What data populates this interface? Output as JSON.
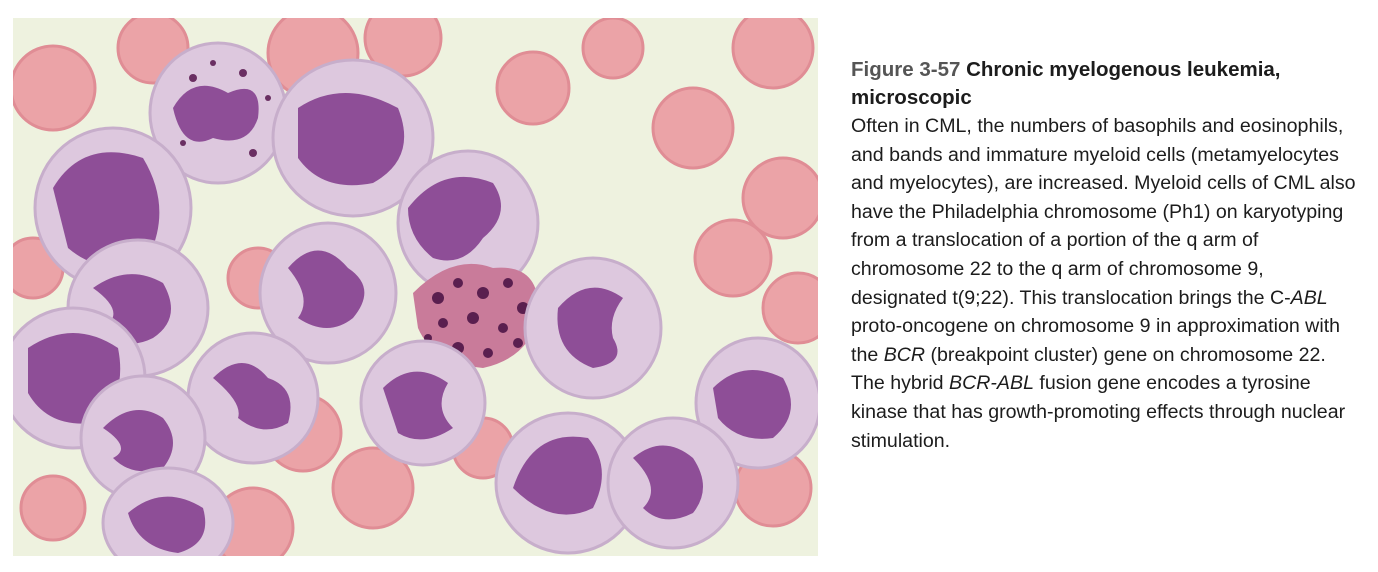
{
  "figure": {
    "label": "Figure 3-57",
    "title": "Chronic myelogenous leukemia, microscopic"
  },
  "caption": {
    "s1": "Often in CML, the numbers of basophils and eosinophils, and bands and immature myeloid cells (metamyelocytes and myelocytes), are increased. Myeloid cells of CML also have the Philadelphia chromosome (Ph1) on karyotyping from a translocation of a portion of the q arm of chromosome 22 to the q arm of chromosome 9, designated t(9;22). This translocation brings the C-",
    "abl1": "ABL",
    "s2": " proto-oncogene on chromosome 9 in approximation with the ",
    "bcr1": "BCR",
    "s3": " (breakpoint cluster) gene on chromosome 22. The hybrid ",
    "bcrabl": "BCR-ABL",
    "s4": " fusion gene encodes a tyrosine kinase that has growth-promoting effects through nuclear stimulation."
  },
  "colors": {
    "background": "#eef2df",
    "rbc": "#eba3a7",
    "cytoplasm": "#ddc8de",
    "nucleus": "#8e4e97",
    "granules": "#5a1f4f"
  }
}
